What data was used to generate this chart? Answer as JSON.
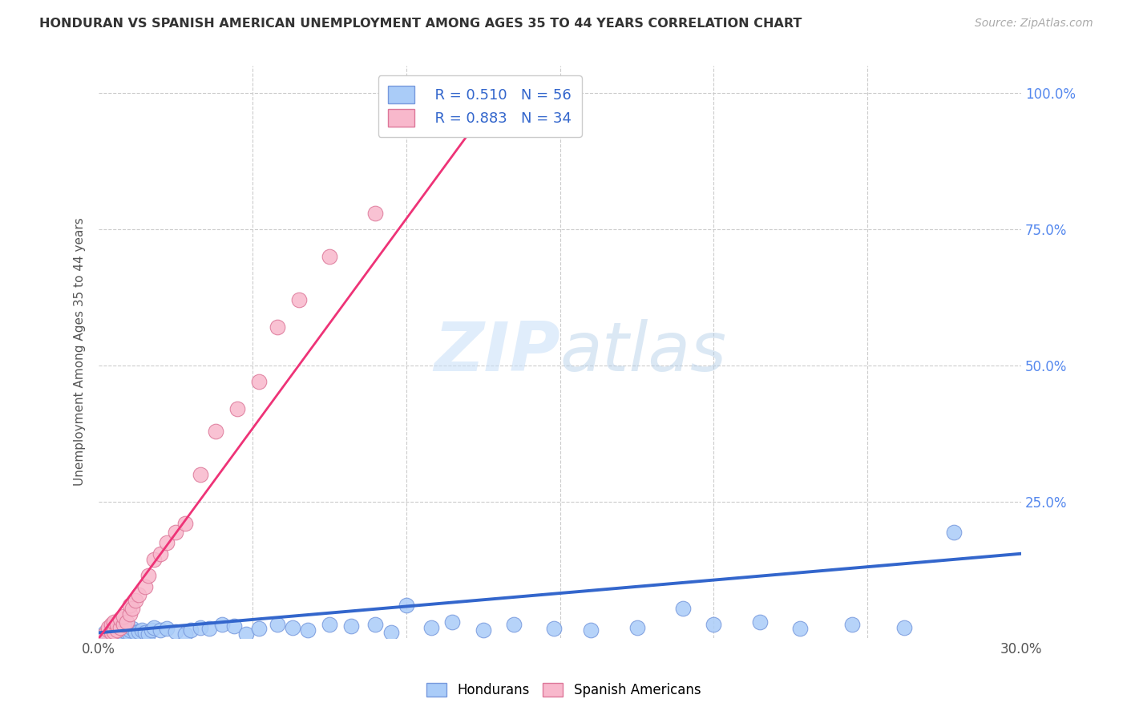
{
  "title": "HONDURAN VS SPANISH AMERICAN UNEMPLOYMENT AMONG AGES 35 TO 44 YEARS CORRELATION CHART",
  "source": "Source: ZipAtlas.com",
  "ylabel": "Unemployment Among Ages 35 to 44 years",
  "xlim": [
    0.0,
    0.3
  ],
  "ylim": [
    0.0,
    1.05
  ],
  "x_tick_positions": [
    0.0,
    0.05,
    0.1,
    0.15,
    0.2,
    0.25,
    0.3
  ],
  "x_tick_labels": [
    "0.0%",
    "",
    "",
    "",
    "",
    "",
    "30.0%"
  ],
  "y_tick_positions": [
    0.0,
    0.25,
    0.5,
    0.75,
    1.0
  ],
  "y_tick_labels": [
    "",
    "25.0%",
    "50.0%",
    "75.0%",
    "100.0%"
  ],
  "honduran_color": "#aaccf8",
  "honduran_edge_color": "#7799dd",
  "spanish_color": "#f8b8cc",
  "spanish_edge_color": "#dd7799",
  "honduran_line_color": "#3366cc",
  "spanish_line_color": "#ee3377",
  "background_color": "#ffffff",
  "grid_color": "#cccccc",
  "watermark_color": "#ddeeff",
  "honduran_x": [
    0.002,
    0.003,
    0.004,
    0.005,
    0.005,
    0.006,
    0.006,
    0.007,
    0.007,
    0.008,
    0.008,
    0.009,
    0.009,
    0.01,
    0.01,
    0.011,
    0.012,
    0.013,
    0.014,
    0.015,
    0.016,
    0.017,
    0.018,
    0.02,
    0.022,
    0.025,
    0.028,
    0.03,
    0.033,
    0.036,
    0.04,
    0.044,
    0.048,
    0.052,
    0.058,
    0.063,
    0.068,
    0.075,
    0.082,
    0.09,
    0.095,
    0.1,
    0.108,
    0.115,
    0.125,
    0.135,
    0.148,
    0.16,
    0.175,
    0.19,
    0.2,
    0.215,
    0.228,
    0.245,
    0.262,
    0.278
  ],
  "honduran_y": [
    0.01,
    0.008,
    0.012,
    0.015,
    0.005,
    0.008,
    0.018,
    0.01,
    0.02,
    0.005,
    0.015,
    0.01,
    0.02,
    0.008,
    0.015,
    0.018,
    0.01,
    0.012,
    0.015,
    0.01,
    0.008,
    0.015,
    0.02,
    0.015,
    0.018,
    0.012,
    0.008,
    0.015,
    0.02,
    0.018,
    0.025,
    0.022,
    0.008,
    0.018,
    0.025,
    0.02,
    0.015,
    0.025,
    0.022,
    0.025,
    0.01,
    0.06,
    0.02,
    0.03,
    0.015,
    0.025,
    0.018,
    0.015,
    0.02,
    0.055,
    0.025,
    0.03,
    0.018,
    0.025,
    0.02,
    0.195
  ],
  "spanish_x": [
    0.002,
    0.003,
    0.003,
    0.004,
    0.004,
    0.005,
    0.005,
    0.006,
    0.006,
    0.007,
    0.007,
    0.008,
    0.008,
    0.009,
    0.01,
    0.01,
    0.011,
    0.012,
    0.013,
    0.015,
    0.016,
    0.018,
    0.02,
    0.022,
    0.025,
    0.028,
    0.033,
    0.038,
    0.045,
    0.052,
    0.058,
    0.065,
    0.075,
    0.09
  ],
  "spanish_y": [
    0.008,
    0.015,
    0.02,
    0.01,
    0.025,
    0.012,
    0.03,
    0.015,
    0.025,
    0.02,
    0.035,
    0.025,
    0.04,
    0.03,
    0.045,
    0.06,
    0.055,
    0.07,
    0.08,
    0.095,
    0.115,
    0.145,
    0.155,
    0.175,
    0.195,
    0.21,
    0.3,
    0.38,
    0.42,
    0.47,
    0.57,
    0.62,
    0.7,
    0.78
  ],
  "honduran_line_x": [
    0.0,
    0.3
  ],
  "honduran_line_y": [
    0.01,
    0.155
  ],
  "spanish_line_x": [
    0.0,
    0.13
  ],
  "spanish_line_y": [
    0.0,
    1.0
  ]
}
